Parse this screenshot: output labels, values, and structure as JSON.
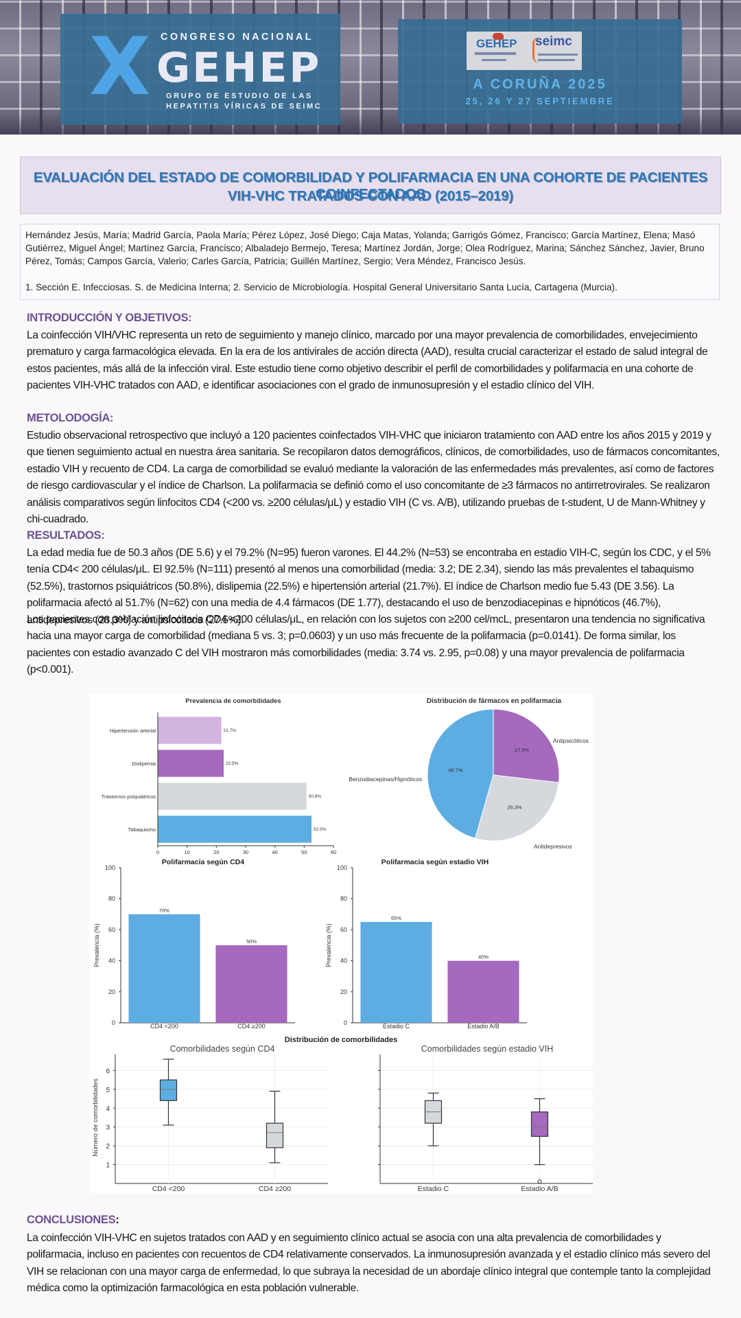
{
  "header": {
    "logo_x": "X",
    "congreso": "CONGRESO NACIONAL",
    "gehep": "GEHEP",
    "sub1": "GRUPO DE ESTUDIO DE LAS",
    "sub2": "HEPATITIS VÍRICAS DE SEIMC",
    "sponsor_gehep": "GEHEP",
    "sponsor_seimc": "seimc",
    "city": "A CORUÑA 2025",
    "dates": "25, 26 Y 27 SEPTIEMBRE"
  },
  "title": {
    "line1": "EVALUACIÓN DEL ESTADO DE COMORBILIDAD Y POLIFARMACIA EN UNA COHORTE DE PACIENTES COINFECTADOS",
    "line2": "VIH-VHC TRATADOS CON AAD (2015–2019)"
  },
  "authors": "Hernández Jesús, María; Madrid García, Paola María; Pérez López, José Diego; Caja Matas, Yolanda; Garrigós Gómez, Francisco; García Martínez, Elena; Masó Gutiérrez, Miguel Ángel; Martínez García, Francisco; Albaladejo Bermejo, Teresa; Martínez Jordán, Jorge; Olea Rodríguez, Marina; Sánchez Sánchez, Javier, Bruno Pérez, Tomás; Campos García, Valerio; Carles García, Patricia; Guillén Martínez, Sergio; Vera Méndez, Francisco Jesús.",
  "affiliation": "1. Sección E. Infecciosas. S. de Medicina Interna; 2. Servicio de Microbiología. Hospital General Universitario Santa Lucía, Cartagena (Murcia).",
  "intro": {
    "heading": "INTRODUCCIÓN Y OBJETIVOS:",
    "text": "La coinfección VIH/VHC representa un reto de seguimiento y manejo clínico, marcado por una mayor prevalencia de comorbilidades, envejecimiento prematuro y carga farmacológica elevada. En la era de los antivirales de acción directa (AAD), resulta crucial caracterizar el estado de salud integral de estos pacientes, más allá de la infección viral. Este estudio tiene como objetivo describir el perfil de comorbilidades y polifarmacia en una cohorte de pacientes VIH-VHC tratados con AAD, e identificar asociaciones con el grado de inmunosupresión y el estadio clínico del VIH."
  },
  "methods": {
    "heading": "METOLODOGÍA:",
    "text": "Estudio observacional retrospectivo que incluyó a 120 pacientes coinfectados VIH-VHC que iniciaron tratamiento con AAD entre los años 2015 y 2019 y que tienen seguimiento actual en nuestra área sanitaria. Se recopilaron datos demográficos, clínicos, de comorbilidades, uso de fármacos concomitantes, estadio VIH y recuento de CD4. La carga de comorbilidad se evaluó mediante la valoración de las enfermedades más prevalentes, así como de factores de riesgo cardiovascular y el índice de Charlson. La polifarmacia se definió como el uso concomitante de ≥3 fármacos no antirretrovirales. Se realizaron análisis comparativos según linfocitos CD4 (<200 vs. ≥200 células/μL) y estadio VIH (C vs. A/B), utilizando pruebas de t-student, U de Mann-Whitney y chi-cuadrado."
  },
  "results": {
    "heading": "RESULTADOS:",
    "text1": "La edad media fue de 50.3 años (DE 5.6) y el 79.2% (N=95) fueron varones. El 44.2% (N=53) se encontraba en estadio VIH-C, según los CDC, y el 5% tenía CD4< 200 células/μL. El 92.5% (N=111) presentó al menos una comorbilidad (media: 3.2; DE 2.34), siendo las más prevalentes el tabaquismo (52.5%), trastornos psiquiátricos (50.8%), dislipemia (22.5%) e hipertensión arterial (21.7%). El índice de Charlson medio fue 5.43 (DE 3.56). La polifarmacia afectó al 51.7% (N=62) con una media de 4.4 fármacos (DE 1.77), destacando el uso de benzodiacepinas e hipnóticos (46.7%), antidepresivos (28.3%) y antipsicóticos (27.5%).",
    "text2": "Los pacientes con población linfocitaria CD4 <200 células/μL, en relación con los sujetos con ≥200 cel/mcL, presentaron una tendencia no significativa hacia una mayor carga de comorbilidad (mediana 5 vs. 3; p=0.0603) y un uso más frecuente de la polifarmacia (p=0.0141). De forma similar, los pacientes con estadio avanzado C del VIH mostraron más comorbilidades (media: 3.74 vs. 2.95, p=0.08) y una mayor prevalencia de polifarmacia (p<0.001)."
  },
  "conclusions": {
    "heading": "CONCLUSIONES",
    "colon": ":",
    "text": "La coinfección VIH-VHC en sujetos tratados con AAD y en seguimiento clínico actual se asocia con una alta prevalencia de comorbilidades y polifarmacia, incluso en pacientes con recuentos de CD4 relativamente conservados. La inmunosupresión avanzada y el estadio clínico más severo del VIH se relacionan con una mayor carga de enfermedad, lo que subraya la necesidad de un abordaje clínico integral que contemple tanto la complejidad médica como la optimización farmacológica en esta población vulnerable."
  },
  "colors": {
    "blue": "#5dade2",
    "purple": "#a569bd",
    "lilac": "#d2b4de",
    "gray": "#d5d8dc",
    "title": "#2f79b9",
    "heading": "#6c5190"
  },
  "chart_data": [
    {
      "type": "bar",
      "orientation": "horizontal",
      "title": "Prevalencia de comorbilidades",
      "categories": [
        "Hipertensión arterial",
        "Dislipemia",
        "Trastornos psiquiátricos",
        "Tabaquismo"
      ],
      "values": [
        21.7,
        22.5,
        50.8,
        52.5
      ],
      "data_labels": [
        "21.7%",
        "22.5%",
        "50.8%",
        "52.5%"
      ],
      "colors": [
        "#d2b4de",
        "#a569bd",
        "#d5d8dc",
        "#5dade2"
      ],
      "xlim": [
        0,
        60
      ],
      "xticks": [
        "0",
        "10",
        "20",
        "30",
        "40",
        "50",
        "60"
      ]
    },
    {
      "type": "pie",
      "title": "Distribución de fármacos en polifarmacia",
      "labels": [
        "Antipsicóticos",
        "Antidepresivos",
        "Benzodiacepinas/Hipnóticos"
      ],
      "values": [
        27.5,
        28.3,
        46.7
      ],
      "data_labels": [
        "27.5%",
        "28.3%",
        "46.7%"
      ],
      "colors": [
        "#a569bd",
        "#d5d8dc",
        "#5dade2"
      ]
    },
    {
      "type": "bar",
      "title": "Polifarmacia según CD4",
      "categories": [
        "CD4 <200",
        "CD4 ≥200"
      ],
      "values": [
        70,
        50
      ],
      "data_labels": [
        "70%",
        "50%"
      ],
      "colors": [
        "#5dade2",
        "#a569bd"
      ],
      "ylabel": "Prevalencia (%)",
      "ylim": [
        0,
        100
      ],
      "yticks": [
        "0",
        "20",
        "40",
        "60",
        "80",
        "100"
      ]
    },
    {
      "type": "bar",
      "title": "Polifarmacia según estadio VIH",
      "categories": [
        "Estadio C",
        "Estadio A/B"
      ],
      "values": [
        65,
        40
      ],
      "data_labels": [
        "65%",
        "40%"
      ],
      "colors": [
        "#5dade2",
        "#a569bd"
      ],
      "ylabel": "Prevalencia (%)",
      "ylim": [
        0,
        100
      ],
      "yticks": [
        "0",
        "20",
        "40",
        "60",
        "80",
        "100"
      ]
    },
    {
      "type": "box",
      "suptitle": "Distribución de comorbilidades",
      "title": "Comorbilidades según CD4",
      "ylabel": "Número de comorbilidades",
      "ylim": [
        0,
        7
      ],
      "yticks": [
        "1",
        "2",
        "3",
        "4",
        "5",
        "6"
      ],
      "categories": [
        "CD4 <200",
        "CD4 ≥200"
      ],
      "boxes": [
        {
          "whisker_low": 3.1,
          "q1": 4.4,
          "median": 5.0,
          "q3": 5.5,
          "whisker_high": 6.6
        },
        {
          "whisker_low": 1.1,
          "q1": 1.9,
          "median": 2.7,
          "q3": 3.2,
          "whisker_high": 4.9
        }
      ],
      "colors": [
        "#5dade2",
        "#d5d8dc"
      ]
    },
    {
      "type": "box",
      "title": "Comorbilidades según estadio VIH",
      "ylim": [
        0,
        7
      ],
      "categories": [
        "Estadio C",
        "Estadio A/B"
      ],
      "boxes": [
        {
          "whisker_low": 2.0,
          "q1": 3.2,
          "median": 3.8,
          "q3": 4.4,
          "whisker_high": 4.8
        },
        {
          "whisker_low": 1.0,
          "q1": 2.5,
          "median": 3.0,
          "q3": 3.8,
          "whisker_high": 4.5,
          "outliers": [
            0.1
          ]
        }
      ],
      "colors": [
        "#d5d8dc",
        "#a569bd"
      ]
    }
  ]
}
